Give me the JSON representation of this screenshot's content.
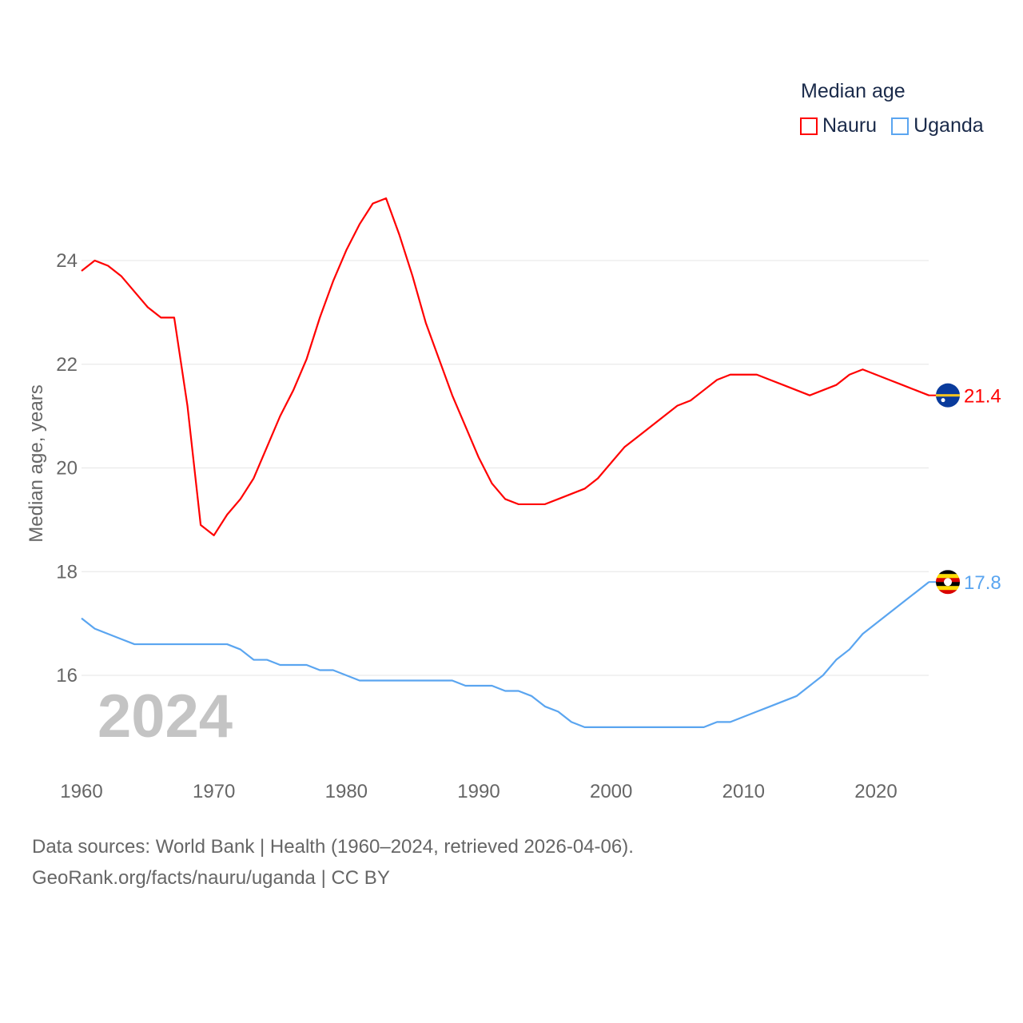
{
  "chart_data": {
    "type": "line",
    "title": "",
    "xlabel": "",
    "ylabel": "Median age, years",
    "xlim": [
      1960,
      2024
    ],
    "ylim": [
      14.5,
      25.5
    ],
    "x_ticks": [
      "1960",
      "1970",
      "1980",
      "1990",
      "2000",
      "2010",
      "2020"
    ],
    "y_ticks": [
      "16",
      "18",
      "20",
      "22",
      "24"
    ],
    "grid": true,
    "year_label": "2024",
    "legend": {
      "title": "Median age",
      "placement": "top-right"
    },
    "x": [
      1960,
      1961,
      1962,
      1963,
      1964,
      1965,
      1966,
      1967,
      1968,
      1969,
      1970,
      1971,
      1972,
      1973,
      1974,
      1975,
      1976,
      1977,
      1978,
      1979,
      1980,
      1981,
      1982,
      1983,
      1984,
      1985,
      1986,
      1987,
      1988,
      1989,
      1990,
      1991,
      1992,
      1993,
      1994,
      1995,
      1996,
      1997,
      1998,
      1999,
      2000,
      2001,
      2002,
      2003,
      2004,
      2005,
      2006,
      2007,
      2008,
      2009,
      2010,
      2011,
      2012,
      2013,
      2014,
      2015,
      2016,
      2017,
      2018,
      2019,
      2020,
      2021,
      2022,
      2023,
      2024
    ],
    "series": [
      {
        "name": "Nauru",
        "color": "#ff0000",
        "end_label": "21.4",
        "flag": "nauru-flag",
        "values": [
          23.8,
          24.0,
          23.9,
          23.7,
          23.4,
          23.1,
          22.9,
          22.9,
          21.2,
          18.9,
          18.7,
          19.1,
          19.4,
          19.8,
          20.4,
          21.0,
          21.5,
          22.1,
          22.9,
          23.6,
          24.2,
          24.7,
          25.1,
          25.2,
          24.5,
          23.7,
          22.8,
          22.1,
          21.4,
          20.8,
          20.2,
          19.7,
          19.4,
          19.3,
          19.3,
          19.3,
          19.4,
          19.5,
          19.6,
          19.8,
          20.1,
          20.4,
          20.6,
          20.8,
          21.0,
          21.2,
          21.3,
          21.5,
          21.7,
          21.8,
          21.8,
          21.8,
          21.7,
          21.6,
          21.5,
          21.4,
          21.5,
          21.6,
          21.8,
          21.9,
          21.8,
          21.7,
          21.6,
          21.5,
          21.4
        ]
      },
      {
        "name": "Uganda",
        "color": "#5aa5f0",
        "end_label": "17.8",
        "flag": "uganda-flag",
        "values": [
          17.1,
          16.9,
          16.8,
          16.7,
          16.6,
          16.6,
          16.6,
          16.6,
          16.6,
          16.6,
          16.6,
          16.6,
          16.5,
          16.3,
          16.3,
          16.2,
          16.2,
          16.2,
          16.1,
          16.1,
          16.0,
          15.9,
          15.9,
          15.9,
          15.9,
          15.9,
          15.9,
          15.9,
          15.9,
          15.8,
          15.8,
          15.8,
          15.7,
          15.7,
          15.6,
          15.4,
          15.3,
          15.1,
          15.0,
          15.0,
          15.0,
          15.0,
          15.0,
          15.0,
          15.0,
          15.0,
          15.0,
          15.0,
          15.1,
          15.1,
          15.2,
          15.3,
          15.4,
          15.5,
          15.6,
          15.8,
          16.0,
          16.3,
          16.5,
          16.8,
          17.0,
          17.2,
          17.4,
          17.6,
          17.8
        ]
      }
    ]
  },
  "footer": {
    "source": "Data sources: World Bank | Health (1960–2024, retrieved 2026-04-06).",
    "link": "GeoRank.org/facts/nauru/uganda | CC BY"
  }
}
